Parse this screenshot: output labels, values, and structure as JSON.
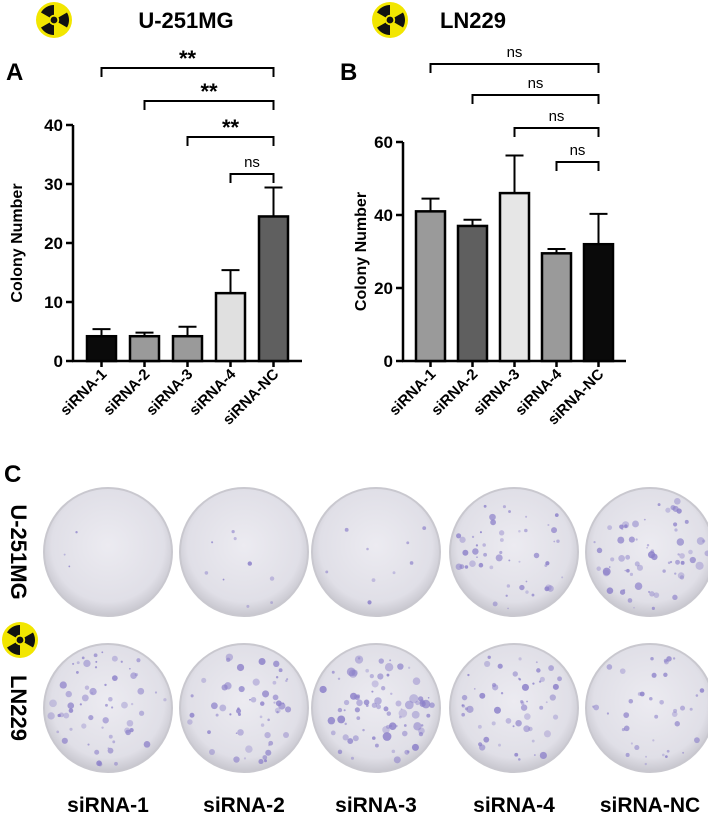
{
  "panels": {
    "A": {
      "letter": "A",
      "cell_line": "U-251MG",
      "icon": "radiation-icon",
      "chart_data": {
        "type": "bar",
        "ylabel": "Colony Number",
        "ylim": [
          0,
          40
        ],
        "yticks": [
          0,
          10,
          20,
          30,
          40
        ],
        "categories": [
          "siRNA-1",
          "siRNA-2",
          "siRNA-3",
          "siRNA-4",
          "siRNA-NC"
        ],
        "values": [
          4.2,
          4.2,
          4.2,
          11.5,
          24.5
        ],
        "error_upper": [
          5.4,
          4.8,
          5.8,
          15.4,
          29.4
        ],
        "bar_colors": [
          "#0a0a0a",
          "#9a9a9a",
          "#9a9a9a",
          "#e0e0e0",
          "#5f5f5f"
        ],
        "significance": [
          {
            "from": 0,
            "to": 4,
            "label": "**"
          },
          {
            "from": 1,
            "to": 4,
            "label": "**"
          },
          {
            "from": 2,
            "to": 4,
            "label": "**"
          },
          {
            "from": 3,
            "to": 4,
            "label": "ns"
          }
        ],
        "grid": false
      }
    },
    "B": {
      "letter": "B",
      "cell_line": "LN229",
      "icon": "radiation-icon",
      "chart_data": {
        "type": "bar",
        "ylabel": "Colony Number",
        "ylim": [
          0,
          60
        ],
        "yticks": [
          0,
          20,
          40,
          60
        ],
        "categories": [
          "siRNA-1",
          "siRNA-2",
          "siRNA-3",
          "siRNA-4",
          "siRNA-NC"
        ],
        "values": [
          41,
          37,
          46,
          29.5,
          32
        ],
        "error_upper": [
          44.5,
          38.7,
          56.3,
          30.7,
          40.3
        ],
        "bar_colors": [
          "#9a9a9a",
          "#5f5f5f",
          "#e6e6e6",
          "#9a9a9a",
          "#0a0a0a"
        ],
        "significance": [
          {
            "from": 0,
            "to": 4,
            "label": "ns"
          },
          {
            "from": 1,
            "to": 4,
            "label": "ns"
          },
          {
            "from": 2,
            "to": 4,
            "label": "ns"
          },
          {
            "from": 3,
            "to": 4,
            "label": "ns"
          }
        ],
        "grid": false
      }
    },
    "C": {
      "letter": "C",
      "rows": [
        {
          "label": "U-251MG",
          "icon": "",
          "colony_density": [
            0.03,
            0.08,
            0.08,
            0.45,
            0.6
          ]
        },
        {
          "label": "LN229",
          "icon": "radiation-icon",
          "colony_density": [
            0.55,
            0.5,
            0.75,
            0.5,
            0.35
          ]
        }
      ],
      "column_labels": [
        "siRNA-1",
        "siRNA-2",
        "siRNA-3",
        "siRNA-4",
        "siRNA-NC"
      ],
      "colors": {
        "dish": "#e4e3ea",
        "colony": "#8b7fc9",
        "rim": "#c9c8cf"
      }
    }
  }
}
